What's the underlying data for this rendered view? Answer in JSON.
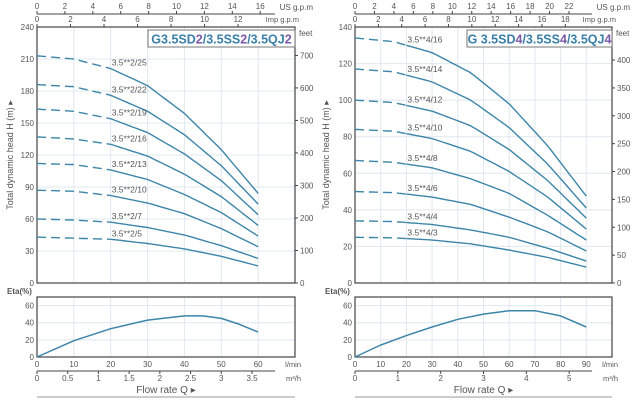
{
  "colors": {
    "curve": "#3d85a8",
    "grid": "#dfe8ef",
    "axis": "#444444",
    "title": "#3a7fa8",
    "title_accent": "#7b5aa8"
  },
  "chart_data": [
    {
      "type": "line",
      "title_parts": [
        "G3.5SD",
        "2",
        "/3.5SS",
        "2",
        "/3.5QJ",
        "2"
      ],
      "ylabel": "Total dynamic head H (m) ▸",
      "eta_label": "Eta(%)",
      "xlabel": "Flow rate  Q ▸",
      "units": {
        "lmin": "l/min",
        "m3h": "m³/h",
        "usgpm": "US g.p.m",
        "impgpm": "Imp g.p.m",
        "feet": "feet"
      },
      "x_lmin": {
        "range": [
          0,
          70
        ],
        "ticks": [
          0,
          10,
          20,
          30,
          40,
          50,
          60
        ]
      },
      "x_m3h_ticks": [
        0,
        0.5,
        1,
        1.5,
        2,
        2.5,
        3,
        3.5
      ],
      "x_usgpm_ticks": [
        0,
        2,
        4,
        6,
        8,
        10,
        12,
        14,
        16
      ],
      "x_impgpm_ticks": [
        0,
        2,
        4,
        6,
        8,
        10,
        12
      ],
      "y_head": {
        "range": [
          0,
          240
        ],
        "ticks": [
          0,
          30,
          60,
          90,
          120,
          150,
          180,
          210,
          240
        ]
      },
      "y_feet_ticks": [
        0,
        100,
        200,
        300,
        400,
        500,
        600,
        700
      ],
      "y_eta": {
        "range": [
          0,
          70
        ],
        "ticks": [
          0,
          20,
          40,
          60
        ]
      },
      "dashed_until_lmin": 20,
      "head_q": [
        0,
        10,
        20,
        30,
        40,
        50,
        60
      ],
      "head_series": [
        {
          "name": "3.5**2/25",
          "values": [
            213,
            210,
            201,
            185,
            159,
            125,
            84
          ]
        },
        {
          "name": "3.5**2/22",
          "values": [
            186,
            184,
            176,
            161,
            139,
            110,
            74
          ]
        },
        {
          "name": "3.5**2/19",
          "values": [
            163,
            161,
            154,
            141,
            121,
            96,
            64
          ]
        },
        {
          "name": "3.5**2/16",
          "values": [
            137,
            135,
            130,
            119,
            102,
            81,
            54
          ]
        },
        {
          "name": "3.5**2/13",
          "values": [
            112,
            111,
            106,
            97,
            83,
            66,
            44
          ]
        },
        {
          "name": "3.5**2/10",
          "values": [
            87,
            86,
            82,
            75,
            65,
            51,
            34
          ]
        },
        {
          "name": "3.5**2/7",
          "values": [
            60,
            59,
            57,
            52,
            45,
            35,
            23
          ]
        },
        {
          "name": "3.5**2/5",
          "values": [
            43,
            42,
            41,
            37,
            32,
            25,
            16
          ]
        }
      ],
      "eta_q": [
        0,
        10,
        20,
        30,
        40,
        45,
        50,
        55,
        60
      ],
      "eta_values": [
        0,
        19,
        33,
        43,
        48,
        48,
        45,
        38,
        29
      ]
    },
    {
      "type": "line",
      "title_parts": [
        "G 3.5SD",
        "4",
        "/3.5SS",
        "4",
        "/3.5QJ",
        "4"
      ],
      "ylabel": "Total dynamic head H (m) ▸",
      "eta_label": "Eta(%)",
      "xlabel": "Flow rate  Q ▸",
      "units": {
        "lmin": "l/min",
        "m3h": "m³/h",
        "usgpm": "US g.p.m",
        "impgpm": "Imp g.p.m",
        "feet": "feet"
      },
      "x_lmin": {
        "range": [
          0,
          100
        ],
        "ticks": [
          0,
          10,
          20,
          30,
          40,
          50,
          60,
          70,
          80,
          90
        ]
      },
      "x_m3h_ticks": [
        0,
        1,
        2,
        3,
        4,
        5
      ],
      "x_usgpm_ticks": [
        0,
        2,
        4,
        6,
        8,
        10,
        12,
        14,
        16,
        18,
        20,
        22
      ],
      "x_impgpm_ticks": [
        0,
        2,
        4,
        6,
        8,
        10,
        12,
        14,
        16,
        18
      ],
      "y_head": {
        "range": [
          0,
          140
        ],
        "ticks": [
          0,
          20,
          40,
          60,
          80,
          100,
          120,
          140
        ]
      },
      "y_feet_ticks": [
        0,
        50,
        100,
        150,
        200,
        250,
        300,
        350,
        400
      ],
      "y_eta": {
        "range": [
          0,
          70
        ],
        "ticks": [
          0,
          20,
          40,
          60
        ]
      },
      "dashed_until_lmin": 20,
      "head_q": [
        0,
        15,
        30,
        45,
        60,
        75,
        90
      ],
      "head_series": [
        {
          "name": "3.5**4/16",
          "values": [
            134,
            132,
            126,
            115,
            98,
            75,
            47.5
          ]
        },
        {
          "name": "3.5**4/14",
          "values": [
            117,
            115.5,
            110,
            100,
            85,
            65,
            41
          ]
        },
        {
          "name": "3.5**4/12",
          "values": [
            100,
            98.7,
            94,
            86,
            73,
            56,
            35.5
          ]
        },
        {
          "name": "3.5**4/10",
          "values": [
            84,
            83,
            79,
            72,
            61,
            47,
            29.5
          ]
        },
        {
          "name": "3.5**4/8",
          "values": [
            67,
            66,
            63,
            57,
            49,
            37,
            23.5
          ]
        },
        {
          "name": "3.5**4/6",
          "values": [
            50,
            49.4,
            47,
            43,
            36,
            28,
            17.5
          ]
        },
        {
          "name": "3.5**4/4",
          "values": [
            34,
            33.6,
            32,
            29,
            25,
            19,
            12
          ]
        },
        {
          "name": "3.5**4/3",
          "values": [
            25,
            24.7,
            23.5,
            21.4,
            18,
            14,
            8.7
          ]
        }
      ],
      "eta_q": [
        0,
        10,
        20,
        30,
        40,
        50,
        60,
        70,
        80,
        90
      ],
      "eta_values": [
        0,
        14,
        25,
        35,
        44,
        50,
        54,
        54,
        48,
        35
      ]
    }
  ]
}
